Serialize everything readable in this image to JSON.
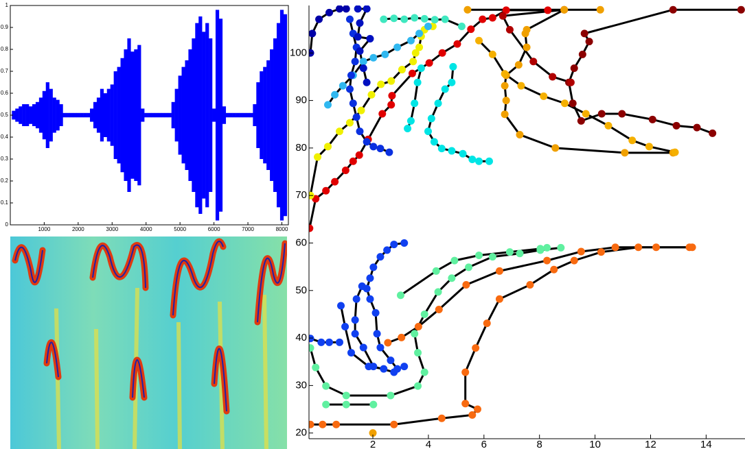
{
  "chart_data": [
    {
      "type": "band",
      "x": [
        100,
        200,
        300,
        400,
        500,
        600,
        700,
        800,
        900,
        1000,
        1100,
        1200,
        1300,
        1400,
        1500,
        1600,
        1700,
        1800,
        1900,
        2000,
        2100,
        2200,
        2300,
        2400,
        2500,
        2600,
        2700,
        2800,
        2900,
        3000,
        3100,
        3200,
        3300,
        3400,
        3500,
        3600,
        3700,
        3800,
        3900,
        4000,
        4100,
        4200,
        4300,
        4400,
        4500,
        4600,
        4700,
        4800,
        4900,
        5000,
        5100,
        5200,
        5300,
        5400,
        5500,
        5600,
        5700,
        5800,
        5900,
        6000,
        6100,
        6200,
        6300,
        6400,
        6500,
        6600,
        6700,
        6800,
        6900,
        7000,
        7100,
        7200,
        7300,
        7400,
        7500,
        7600,
        7700,
        7800,
        7900,
        8000,
        8100
      ],
      "high": [
        0.52,
        0.53,
        0.54,
        0.55,
        0.55,
        0.54,
        0.55,
        0.56,
        0.58,
        0.61,
        0.65,
        0.62,
        0.58,
        0.57,
        0.55,
        0.51,
        0.51,
        0.51,
        0.51,
        0.51,
        0.51,
        0.51,
        0.51,
        0.53,
        0.56,
        0.58,
        0.62,
        0.6,
        0.62,
        0.64,
        0.7,
        0.72,
        0.76,
        0.8,
        0.85,
        0.79,
        0.8,
        0.82,
        0.53,
        0.51,
        0.51,
        0.51,
        0.51,
        0.51,
        0.51,
        0.51,
        0.51,
        0.56,
        0.62,
        0.68,
        0.72,
        0.75,
        0.8,
        0.85,
        0.92,
        0.95,
        0.88,
        0.92,
        0.85,
        0.53,
        0.98,
        0.94,
        0.54,
        0.51,
        0.51,
        0.51,
        0.51,
        0.51,
        0.51,
        0.51,
        0.51,
        0.55,
        0.65,
        0.7,
        0.72,
        0.75,
        0.8,
        0.85,
        0.92,
        0.98,
        0.96
      ],
      "low": [
        0.48,
        0.47,
        0.46,
        0.45,
        0.45,
        0.46,
        0.45,
        0.44,
        0.42,
        0.39,
        0.35,
        0.38,
        0.42,
        0.43,
        0.45,
        0.49,
        0.49,
        0.49,
        0.49,
        0.49,
        0.49,
        0.49,
        0.49,
        0.47,
        0.44,
        0.42,
        0.38,
        0.4,
        0.38,
        0.36,
        0.3,
        0.28,
        0.24,
        0.2,
        0.15,
        0.21,
        0.2,
        0.18,
        0.47,
        0.49,
        0.49,
        0.49,
        0.49,
        0.49,
        0.49,
        0.49,
        0.49,
        0.44,
        0.38,
        0.32,
        0.28,
        0.25,
        0.2,
        0.15,
        0.08,
        0.05,
        0.12,
        0.08,
        0.15,
        0.47,
        0.02,
        0.06,
        0.46,
        0.49,
        0.49,
        0.49,
        0.49,
        0.49,
        0.49,
        0.49,
        0.49,
        0.45,
        0.35,
        0.3,
        0.28,
        0.25,
        0.2,
        0.15,
        0.08,
        0.02,
        0.04
      ],
      "color": "#0000ff",
      "xlim": [
        1,
        8192
      ],
      "ylim": [
        0,
        1
      ],
      "xticks": [
        1000,
        2000,
        3000,
        4000,
        5000,
        6000,
        7000,
        8000
      ],
      "yticks": [
        0,
        0.1,
        0.2,
        0.3,
        0.4,
        0.5,
        0.6,
        0.7,
        0.8,
        0.9,
        1
      ]
    },
    {
      "type": "line",
      "xlim": [
        -0.3,
        15.4
      ],
      "ylim": [
        18.8,
        110
      ],
      "xticks": [
        2,
        4,
        6,
        8,
        10,
        12,
        14
      ],
      "yticks": [
        20,
        30,
        40,
        50,
        60,
        70,
        80,
        90,
        100
      ],
      "line_color": "#000000",
      "series": [
        {
          "color": "#e00000",
          "x": [
            -0.28,
            -0.06,
            0.31,
            0.63,
            1.02,
            1.29,
            1.51,
            1.83,
            2.34,
            2.66,
            2.69,
            3.42,
            4.03,
            4.5,
            5.04,
            5.53,
            5.95,
            6.31,
            6.8,
            8.3
          ],
          "values": [
            63.1,
            69.3,
            71,
            72.9,
            75.3,
            77.2,
            78.5,
            81.8,
            87.2,
            89.1,
            91,
            95.7,
            97.9,
            100,
            101.9,
            105,
            107.1,
            107.4,
            109,
            109
          ]
        },
        {
          "color": "#8b0000",
          "x": [
            15.26,
            12.81,
            9.62,
            9.79,
            9.55,
            9.25,
            9.06,
            9.2,
            9.5,
            10.24,
            10.97,
            12.07,
            12.93,
            13.67,
            14.23
          ],
          "values": [
            109.1,
            109.1,
            104.1,
            102.4,
            99.7,
            96.8,
            93.8,
            89.4,
            85.7,
            87.2,
            87.2,
            86,
            84.7,
            84.3,
            83.1
          ]
        },
        {
          "color": "#b00000",
          "x": [
            8.89,
            6.68,
            6.93,
            7.78,
            8.47,
            9.13
          ],
          "values": [
            109.1,
            107.8,
            104.9,
            98.2,
            95,
            93.8
          ]
        },
        {
          "color": "#f0a000",
          "x": [
            5.41,
            10.19,
            8.89,
            7.54,
            7.49,
            7.54,
            7.25,
            6.8,
            6.75,
            6.8,
            6.75,
            7.29,
            8.57,
            11.07,
            12.81
          ],
          "values": [
            109.1,
            109.1,
            109.1,
            104.9,
            104.1,
            101.2,
            97.5,
            95.3,
            93.1,
            90,
            87.1,
            82.8,
            80,
            79,
            79
          ]
        },
        {
          "color": "#f5b000",
          "x": [
            5.82,
            6.31,
            6.75,
            7.34,
            8.15,
            8.91,
            9.67,
            10.48,
            11.34,
            11.95,
            12.88
          ],
          "values": [
            102.6,
            99.7,
            95.6,
            93.1,
            90.9,
            89.4,
            87.2,
            84.7,
            81.6,
            80.3,
            79.1
          ]
        },
        {
          "color": "#f0f000",
          "x": [
            -0.25,
            0.01,
            0.38,
            0.8,
            1.17,
            1.58,
            1.95,
            2.29,
            2.66,
            3.05,
            3.45,
            3.54,
            3.67,
            3.74,
            3.86,
            4.16
          ],
          "values": [
            70,
            78.1,
            80.3,
            83.5,
            85.3,
            87.9,
            91.2,
            93.4,
            94.1,
            96.5,
            98.2,
            100,
            101.2,
            103.5,
            104.9,
            105.6
          ]
        },
        {
          "color": "#00e5e5",
          "x": [
            4.89,
            4.84,
            4.6,
            4.35,
            4.11,
            3.99,
            4.21,
            4.48,
            4.84,
            5.24,
            5.58,
            5.82,
            6.19
          ],
          "values": [
            97.1,
            93.8,
            92.4,
            89.4,
            86.2,
            83.5,
            81.3,
            79.9,
            79.4,
            78.8,
            77.6,
            77.2,
            77.2
          ]
        },
        {
          "color": "#00e5e5",
          "x": [
            3.74,
            3.61,
            3.5,
            3.37,
            3.25
          ],
          "values": [
            96.8,
            93.8,
            89.4,
            85.7,
            84.1
          ]
        },
        {
          "color": "#30b8f0",
          "x": [
            0.38,
            0.63,
            0.92,
            1.29,
            1.66,
            2.02,
            2.44,
            2.88,
            3.37,
            3.67,
            3.99
          ],
          "values": [
            89.1,
            91.2,
            93.1,
            95.3,
            98.2,
            99,
            99.7,
            101.2,
            102.6,
            104.1,
            105.6
          ]
        },
        {
          "color": "#40e8c0",
          "x": [
            2.39,
            2.76,
            3.13,
            3.5,
            3.86,
            4.23,
            4.6,
            5.2
          ],
          "values": [
            107.1,
            107.3,
            107.1,
            107.4,
            107.2,
            107,
            107.1,
            105.6
          ]
        },
        {
          "color": "#0a30e0",
          "x": [
            1.17,
            1.29,
            1.41,
            1.36,
            1.22,
            1.17,
            1.29,
            1.41,
            1.53,
            1.78,
            2.02,
            2.27,
            2.59
          ],
          "values": [
            107.1,
            104.1,
            101.2,
            98.2,
            95.3,
            92.4,
            89.4,
            86.5,
            83.5,
            81.3,
            80.3,
            79.9,
            79.1
          ]
        },
        {
          "color": "#0000a8",
          "x": [
            -0.25,
            -0.18,
            0.06,
            0.43,
            0.8,
            1.04
          ],
          "values": [
            100,
            104.1,
            107.1,
            108.5,
            109.3,
            109.3
          ]
        },
        {
          "color": "#0010c0",
          "x": [
            1.46,
            1.78,
            1.53,
            1.46,
            1.9,
            1.53,
            1.66,
            1.78
          ],
          "values": [
            109.3,
            109.3,
            106.3,
            103.4,
            103,
            100.4,
            96.8,
            93.8
          ]
        },
        {
          "color": "#1040f0",
          "x": [
            3.13,
            2.76,
            2.51,
            2.27,
            2.02,
            1.9,
            1.78,
            1.9,
            2.1,
            2.15,
            2.27,
            2.64,
            2.88,
            3.13
          ],
          "values": [
            60,
            59.7,
            58.5,
            57.1,
            54.9,
            52.6,
            50.4,
            48.2,
            45.3,
            40.9,
            38,
            35.3,
            33.5,
            34
          ]
        },
        {
          "color": "#1040f0",
          "x": [
            1.61,
            1.41,
            1.36,
            1.36,
            1.66,
            2.02,
            2.76
          ],
          "values": [
            50.9,
            48.2,
            43.8,
            40.9,
            38,
            34,
            32.8
          ]
        },
        {
          "color": "#1040f0",
          "x": [
            0.85,
            1.0,
            1.22,
            1.85,
            2.39
          ],
          "values": [
            46.8,
            42.4,
            36.9,
            34,
            33.5
          ]
        },
        {
          "color": "#1040f0",
          "x": [
            -0.25,
            0.14,
            0.43,
            0.8
          ],
          "values": [
            39.9,
            39.1,
            39.1,
            39.1
          ]
        },
        {
          "color": "#60f0a0",
          "x": [
            3,
            4.28,
            4.94,
            5.82,
            6.93,
            8.03,
            8.27
          ],
          "values": [
            49,
            54.1,
            56.3,
            57.4,
            58.1,
            58.8,
            59
          ]
        },
        {
          "color": "#60f0a0",
          "x": [
            -0.25,
            -0.06,
            0.31,
            1.04,
            2.64,
            3.62,
            3.86,
            3.62,
            3.5,
            3.86,
            4.35,
            4.84,
            5.45,
            6.31,
            7.29,
            8.03,
            8.77
          ],
          "values": [
            37.9,
            33.8,
            29.9,
            27.9,
            27.9,
            29.9,
            32.8,
            36.9,
            40.9,
            45,
            49.7,
            52.6,
            54.9,
            57.1,
            57.8,
            58.5,
            59
          ]
        },
        {
          "color": "#60f0a0",
          "x": [
            0.31,
            1.04,
            2.02
          ],
          "values": [
            26,
            26,
            26
          ]
        },
        {
          "color": "#f86a10",
          "x": [
            -0.25,
            0.19,
            0.68,
            2.76,
            4.48,
            5.58,
            5.77,
            5.33,
            5.33,
            5.7,
            6.11,
            6.56,
            7.66,
            8.52,
            9.25,
            10.22,
            11.56,
            13.4
          ],
          "values": [
            21.8,
            21.8,
            21.8,
            21.8,
            23.1,
            23.8,
            25,
            26.2,
            32.8,
            37.9,
            43.1,
            48.2,
            51.2,
            54.4,
            56.3,
            58.1,
            59.1,
            59.1
          ]
        },
        {
          "color": "#f86a10",
          "x": [
            2.54,
            3.03,
            3.64,
            4.38,
            5.36,
            6.56,
            8.27,
            9.5,
            10.73,
            12.2,
            13.5
          ],
          "values": [
            39,
            40.1,
            42.4,
            46,
            51.2,
            54.1,
            56.3,
            58.2,
            59.1,
            59.1,
            59.1
          ]
        },
        {
          "color": "#f0a000",
          "x": [
            2
          ],
          "values": [
            20
          ]
        }
      ]
    }
  ]
}
